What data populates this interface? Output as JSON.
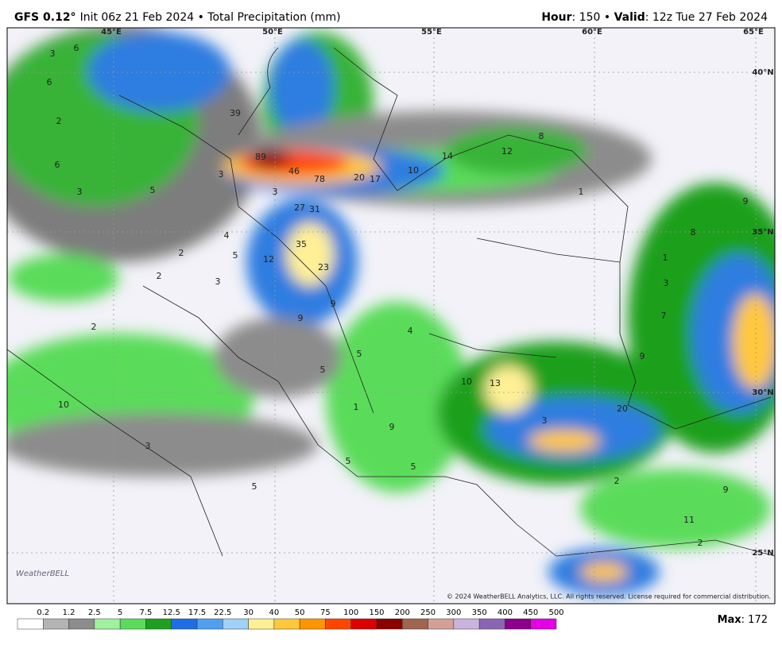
{
  "header": {
    "model": "GFS 0.12°",
    "run": "Init 06z 21 Feb 2024 • Total Precipitation (mm)",
    "hour_key": "Hour",
    "hour_text": ": 150 • ",
    "valid_key": "Valid",
    "valid_text": ": 12z Tue 27 Feb 2024"
  },
  "map": {
    "grid_labels": [
      "45°E",
      "50°E",
      "55°E",
      "60°E",
      "65°E",
      "40°N",
      "35°N",
      "30°N",
      "25°N"
    ],
    "point_labels": [
      3,
      6,
      6,
      2,
      6,
      3,
      5,
      3,
      39,
      89,
      46,
      78,
      20,
      17,
      10,
      14,
      12,
      8,
      3,
      27,
      31,
      4,
      5,
      2,
      12,
      35,
      23,
      3,
      2,
      9,
      9,
      2,
      1,
      9,
      8,
      1,
      3,
      7,
      9,
      5,
      5,
      4,
      10,
      13,
      3,
      20,
      1,
      9,
      10,
      3,
      5,
      5,
      5,
      2,
      9,
      11,
      2
    ],
    "copyright": "© 2024 WeatherBELL Analytics, LLC. All rights reserved. License required for commercial distribution.",
    "logo": "WeatherBELL"
  },
  "legend": {
    "levels": [
      0.2,
      1.2,
      2.5,
      5,
      7.5,
      12.5,
      17.5,
      22.5,
      30,
      40,
      50,
      75,
      100,
      150,
      200,
      250,
      300,
      350,
      400,
      450,
      500
    ],
    "colors": [
      "#ffffff",
      "#b4b4b4",
      "#8c8c8c",
      "#a0f0a0",
      "#5adc5a",
      "#1ea01e",
      "#1e6ee6",
      "#50a0f0",
      "#a0d2f5",
      "#fff096",
      "#ffc83c",
      "#ff9600",
      "#ff4600",
      "#dc0000",
      "#8c0000",
      "#a06450",
      "#d2a096",
      "#c8b4dc",
      "#8c64b4",
      "#8c008c",
      "#e600e6"
    ],
    "max_key": "Max",
    "max_value": ": 172"
  }
}
